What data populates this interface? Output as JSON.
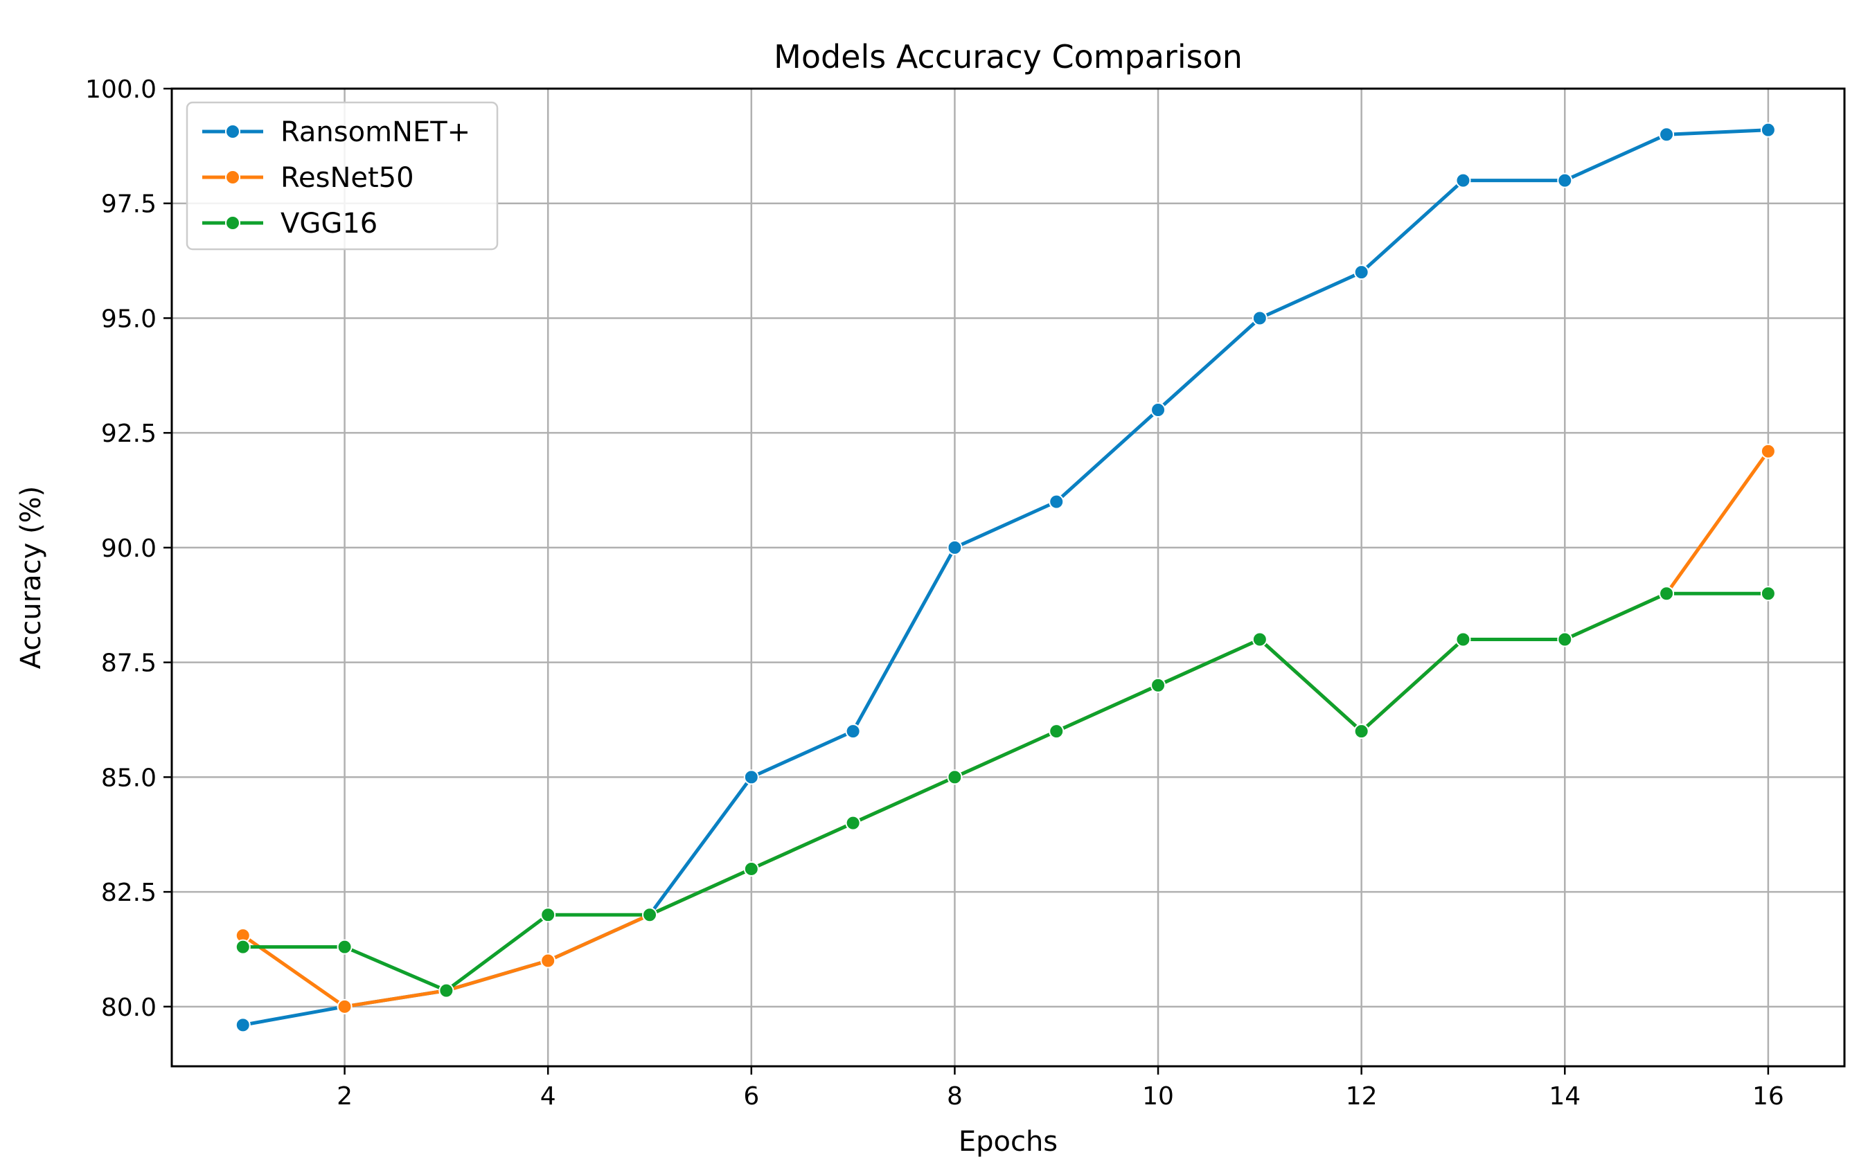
{
  "chart_data": {
    "type": "line",
    "title": "Models Accuracy Comparison",
    "xlabel": "Epochs",
    "ylabel": "Accuracy (%)",
    "xlim": [
      0.3,
      16.75
    ],
    "ylim": [
      78.7,
      100.0
    ],
    "x_ticks": [
      2,
      4,
      6,
      8,
      10,
      12,
      14,
      16
    ],
    "y_ticks": [
      80.0,
      82.5,
      85.0,
      87.5,
      90.0,
      92.5,
      95.0,
      97.5,
      100.0
    ],
    "x_tick_labels": [
      "2",
      "4",
      "6",
      "8",
      "10",
      "12",
      "14",
      "16"
    ],
    "y_tick_labels": [
      "80.0",
      "82.5",
      "85.0",
      "87.5",
      "90.0",
      "92.5",
      "95.0",
      "97.5",
      "100.0"
    ],
    "grid": true,
    "legend_position": "top-left",
    "x": [
      1,
      2,
      3,
      4,
      5,
      6,
      7,
      8,
      9,
      10,
      11,
      12,
      13,
      14,
      15,
      16
    ],
    "series": [
      {
        "name": "RansomNET+",
        "color": "#0a80c2",
        "values": [
          79.6,
          80.0,
          80.35,
          81.0,
          82.0,
          85.0,
          86.0,
          90.0,
          91.0,
          93.0,
          95.0,
          96.0,
          98.0,
          98.0,
          99.0,
          99.1
        ]
      },
      {
        "name": "ResNet50",
        "color": "#ff7f0e",
        "values": [
          81.55,
          80.0,
          80.35,
          81.0,
          82.0,
          83.0,
          84.0,
          85.0,
          86.0,
          87.0,
          88.0,
          86.0,
          88.0,
          88.0,
          89.0,
          92.1
        ]
      },
      {
        "name": "VGG16",
        "color": "#0fa02c",
        "values": [
          81.3,
          81.3,
          80.35,
          82.0,
          82.0,
          83.0,
          84.0,
          85.0,
          86.0,
          87.0,
          88.0,
          86.0,
          88.0,
          88.0,
          89.0,
          89.0
        ]
      }
    ]
  }
}
